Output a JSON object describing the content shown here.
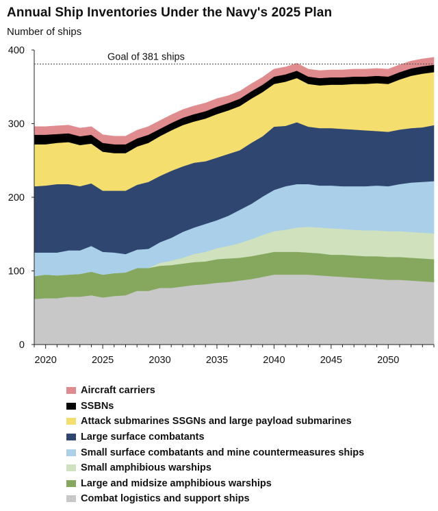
{
  "title": "Annual Ship Inventories Under the Navy's 2025 Plan",
  "y_axis_title": "Number of ships",
  "goal_label": "Goal of 381 ships",
  "chart_data": {
    "type": "area",
    "stacked": true,
    "title": "Annual Ship Inventories Under the Navy's 2025 Plan",
    "ylabel": "Number of ships",
    "xlabel": "",
    "xlim": [
      2019,
      2054
    ],
    "ylim": [
      0,
      400
    ],
    "x_ticks": [
      2020,
      2025,
      2030,
      2035,
      2040,
      2045,
      2050
    ],
    "y_ticks": [
      0,
      100,
      200,
      300,
      400
    ],
    "grid": false,
    "legend_position": "bottom",
    "reference_line": {
      "value": 381,
      "label": "Goal of 381 ships",
      "style": "dotted"
    },
    "x": [
      2019,
      2020,
      2021,
      2022,
      2023,
      2024,
      2025,
      2026,
      2027,
      2028,
      2029,
      2030,
      2031,
      2032,
      2033,
      2034,
      2035,
      2036,
      2037,
      2038,
      2039,
      2040,
      2041,
      2042,
      2043,
      2044,
      2045,
      2046,
      2047,
      2048,
      2049,
      2050,
      2051,
      2052,
      2053,
      2054
    ],
    "series": [
      {
        "name": "Combat logistics and support ships",
        "color": "#c8c8c8",
        "values": [
          62,
          63,
          63,
          65,
          65,
          67,
          64,
          66,
          67,
          73,
          73,
          77,
          77,
          79,
          81,
          82,
          84,
          85,
          87,
          89,
          92,
          95,
          95,
          95,
          95,
          94,
          93,
          92,
          91,
          90,
          89,
          88,
          88,
          87,
          86,
          85
        ]
      },
      {
        "name": "Large and midsize amphibious warships",
        "color": "#85a85e",
        "values": [
          31,
          32,
          31,
          30,
          31,
          32,
          31,
          31,
          31,
          31,
          31,
          30,
          31,
          31,
          31,
          31,
          32,
          32,
          31,
          31,
          31,
          31,
          31,
          31,
          30,
          30,
          29,
          30,
          30,
          30,
          31,
          31,
          31,
          31,
          31,
          31
        ]
      },
      {
        "name": "Small amphibious warships",
        "color": "#cfe2bd",
        "values": [
          0,
          0,
          0,
          0,
          0,
          0,
          0,
          0,
          0,
          0,
          0,
          4,
          6,
          8,
          11,
          13,
          15,
          17,
          20,
          23,
          26,
          28,
          30,
          33,
          35,
          35,
          36,
          35,
          35,
          35,
          35,
          35,
          35,
          35,
          35,
          35
        ]
      },
      {
        "name": "Small surface combatants and mine countermeasures ships",
        "color": "#a9cfe9",
        "values": [
          32,
          30,
          31,
          33,
          32,
          35,
          31,
          28,
          25,
          25,
          26,
          28,
          31,
          35,
          36,
          38,
          38,
          41,
          45,
          48,
          52,
          56,
          59,
          59,
          58,
          57,
          58,
          58,
          59,
          60,
          61,
          61,
          64,
          67,
          69,
          71
        ]
      },
      {
        "name": "Large surface combatants",
        "color": "#2e4670",
        "values": [
          90,
          91,
          93,
          90,
          87,
          85,
          83,
          84,
          86,
          88,
          91,
          90,
          91,
          89,
          88,
          85,
          85,
          84,
          81,
          83,
          82,
          86,
          82,
          84,
          78,
          78,
          78,
          78,
          77,
          76,
          74,
          74,
          74,
          74,
          74,
          76
        ]
      },
      {
        "name": "Attack submarines SSGNs and large payload submarines",
        "color": "#f4de6e",
        "values": [
          57,
          56,
          56,
          57,
          56,
          54,
          53,
          51,
          51,
          52,
          53,
          54,
          55,
          56,
          56,
          58,
          59,
          59,
          60,
          60,
          60,
          58,
          60,
          60,
          58,
          58,
          59,
          60,
          62,
          63,
          65,
          65,
          68,
          71,
          73,
          72
        ]
      },
      {
        "name": "SSBNs",
        "color": "#000000",
        "values": [
          13,
          13,
          12,
          12,
          12,
          12,
          12,
          12,
          12,
          11,
          11,
          10,
          10,
          10,
          10,
          10,
          10,
          10,
          10,
          10,
          10,
          10,
          10,
          10,
          10,
          10,
          10,
          10,
          10,
          10,
          10,
          10,
          10,
          10,
          10,
          10
        ]
      },
      {
        "name": "Aircraft carriers",
        "color": "#e08c8f",
        "values": [
          11,
          11,
          11,
          11,
          11,
          11,
          11,
          11,
          11,
          11,
          11,
          11,
          11,
          11,
          11,
          11,
          11,
          10,
          10,
          10,
          10,
          10,
          10,
          10,
          10,
          10,
          10,
          10,
          10,
          10,
          10,
          10,
          10,
          10,
          10,
          10
        ]
      }
    ],
    "legend_order": [
      "Aircraft carriers",
      "SSBNs",
      "Attack submarines SSGNs and large payload submarines",
      "Large surface combatants",
      "Small surface combatants and mine countermeasures ships",
      "Small amphibious warships",
      "Large and midsize amphibious warships",
      "Combat logistics and support ships"
    ]
  }
}
